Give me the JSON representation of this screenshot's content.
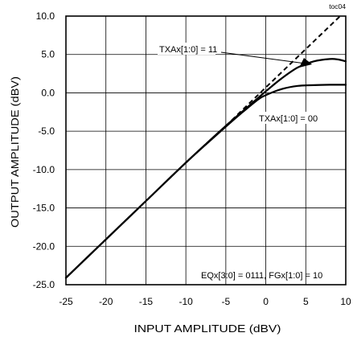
{
  "chart_data": {
    "type": "line",
    "figure_id": "toc04",
    "xlabel": "INPUT AMPLITUDE (dBV)",
    "ylabel": "OUTPUT AMPLITUDE (dBV)",
    "xlim": [
      -25,
      10
    ],
    "ylim": [
      -25,
      10
    ],
    "x_ticks": [
      -25,
      -20,
      -15,
      -10,
      -5,
      0,
      5,
      10
    ],
    "x_tick_labels": [
      "-25",
      "-20",
      "-15",
      "-10",
      "-5",
      "0",
      "5",
      "10"
    ],
    "y_ticks": [
      10,
      5,
      0,
      -5,
      -10,
      -15,
      -20,
      -25
    ],
    "y_tick_labels": [
      "10.0",
      "5.0",
      "0.0",
      "-5.0",
      "-10.0",
      "-15.0",
      "-20.0",
      "-25.0"
    ],
    "grid": true,
    "series": [
      {
        "name": "TXAx[1:0] = 11",
        "style": "solid",
        "x": [
          -25,
          -20,
          -15,
          -10,
          -5,
          -2,
          0,
          2,
          4,
          6,
          8,
          9,
          10
        ],
        "y": [
          -24.1,
          -19.1,
          -14.1,
          -9.1,
          -4.3,
          -1.6,
          0.2,
          1.9,
          3.3,
          4.1,
          4.4,
          4.35,
          4.1
        ]
      },
      {
        "name": "TXAx[1:0] = 00",
        "style": "solid",
        "x": [
          -25,
          -20,
          -15,
          -10,
          -5,
          -3,
          -1,
          0,
          2,
          4,
          6,
          8,
          10
        ],
        "y": [
          -24.1,
          -19.1,
          -14.1,
          -9.1,
          -4.4,
          -2.6,
          -0.9,
          -0.3,
          0.5,
          0.9,
          1.0,
          1.05,
          1.05
        ]
      },
      {
        "name": "",
        "style": "dashed",
        "x": [
          -5,
          0,
          5,
          10
        ],
        "y": [
          -4.3,
          0.7,
          5.7,
          10.7
        ]
      }
    ],
    "annotations": [
      {
        "text": "TXAx[1:0] = 11"
      },
      {
        "text": "TXAx[1:0] = 00"
      },
      {
        "text": "EQx[3:0] = 0111, FGx[1:0] = 10"
      }
    ]
  }
}
